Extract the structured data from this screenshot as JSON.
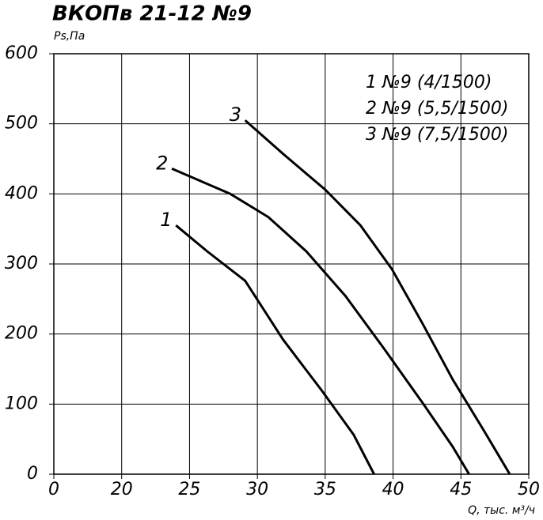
{
  "chart_data": {
    "type": "line",
    "title": "ВКОПв 21-12 №9",
    "y_label": "Ps,Па",
    "x_label": "Q, тыс. м³/ч",
    "xlim": [
      0,
      50
    ],
    "xticks": [
      0,
      20,
      25,
      30,
      35,
      40,
      45,
      50
    ],
    "ylim": [
      0,
      600
    ],
    "yticks": [
      0,
      100,
      200,
      300,
      400,
      500,
      600
    ],
    "grid": true,
    "series": [
      {
        "name": "1 №9 (4/1500)",
        "label": "1",
        "color": "#000000",
        "x": [
          24,
          26.3,
          29.1,
          31.9,
          34.8,
          37.1,
          38.6
        ],
        "values": [
          355,
          318,
          276,
          192,
          118,
          56,
          0
        ]
      },
      {
        "name": "2 №9 (5,5/1500)",
        "label": "2",
        "color": "#000000",
        "x": [
          23.7,
          28,
          30.8,
          33.6,
          36.5,
          39.3,
          42.2,
          44.4,
          45.6
        ],
        "values": [
          436,
          400,
          367,
          318,
          254,
          180,
          101,
          39,
          0
        ]
      },
      {
        "name": "3 №9 (7,5/1500)",
        "label": "3",
        "color": "#000000",
        "x": [
          29.1,
          31.9,
          35,
          37.6,
          39.9,
          42.2,
          44.4,
          46.7,
          48.6
        ],
        "values": [
          505,
          457,
          406,
          355,
          293,
          214,
          135,
          62,
          0
        ]
      }
    ]
  }
}
